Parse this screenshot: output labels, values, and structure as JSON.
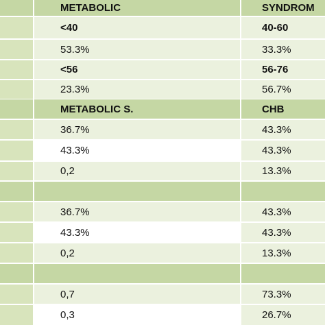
{
  "table": {
    "rows": [
      [
        "METABOLIC",
        "SYNDROM"
      ],
      [
        "<40",
        "40-60"
      ],
      [
        "53.3%",
        "33.3%"
      ],
      [
        "<56",
        "56-76"
      ],
      [
        "23.3%",
        "56.7%"
      ],
      [
        "METABOLIC S.",
        "CHB"
      ],
      [
        "36.7%",
        "43.3%"
      ],
      [
        "43.3%",
        "43.3%"
      ],
      [
        "0,2",
        "13.3%"
      ],
      [
        "36.7%",
        "43.3%"
      ],
      [
        "43.3%",
        "43.3%"
      ],
      [
        "0,2",
        "13.3%"
      ],
      [
        "0,7",
        "73.3%"
      ],
      [
        "0,3",
        "26.7%"
      ]
    ]
  }
}
